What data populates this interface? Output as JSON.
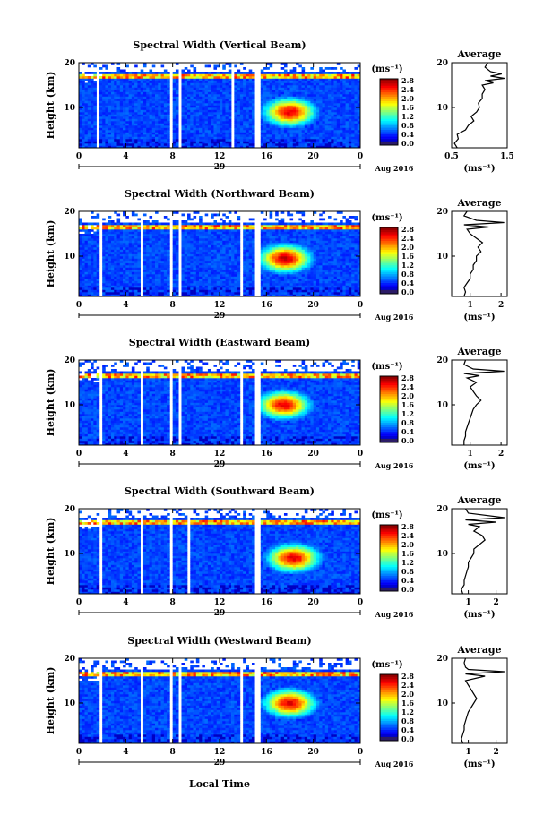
{
  "figure": {
    "bottom_xlabel": "Local Time",
    "date_label": "Aug 2016",
    "day_label": "29",
    "ylabel": "Height (km)",
    "colorbar_unit": "(ms⁻¹)",
    "average_title": "Average",
    "average_xlabel": "(ms⁻¹)"
  },
  "chart_data": [
    {
      "type": "heatmap",
      "title": "Spectral Width (Vertical Beam)",
      "x_ticks": [
        "0",
        "4",
        "8",
        "12",
        "16",
        "20",
        "0"
      ],
      "xlim": [
        0,
        24
      ],
      "y_ticks": [
        "10",
        "20"
      ],
      "ylim": [
        1,
        20
      ],
      "gaps": [
        [
          1.5,
          1.7
        ],
        [
          7.8,
          8.0
        ],
        [
          8.5,
          8.7
        ],
        [
          12.9,
          13.3
        ],
        [
          15.1,
          15.5
        ]
      ],
      "tropopause_km": 17,
      "hot_spot": {
        "x": 18,
        "y": 9,
        "value": 2.6
      },
      "colorbar": {
        "ticks": [
          "0.0",
          "0.4",
          "0.8",
          "1.2",
          "1.6",
          "2.0",
          "2.4",
          "2.8"
        ],
        "range": [
          0,
          3.0
        ]
      },
      "average": {
        "x_ticks": [
          "0.5",
          "1.5"
        ],
        "xlim": [
          0.5,
          1.5
        ],
        "y_ticks": [
          "10",
          "20"
        ],
        "profile": [
          [
            1,
            0.6
          ],
          [
            2,
            0.55
          ],
          [
            3,
            0.62
          ],
          [
            4,
            0.6
          ],
          [
            5,
            0.75
          ],
          [
            6,
            0.8
          ],
          [
            7,
            0.9
          ],
          [
            8,
            0.85
          ],
          [
            9,
            0.95
          ],
          [
            10,
            1.0
          ],
          [
            11,
            0.98
          ],
          [
            12,
            1.05
          ],
          [
            13,
            1.05
          ],
          [
            14,
            1.1
          ],
          [
            15,
            1.05
          ],
          [
            15.5,
            1.25
          ],
          [
            16,
            1.1
          ],
          [
            16.5,
            1.45
          ],
          [
            17,
            1.2
          ],
          [
            17.5,
            1.4
          ],
          [
            18,
            1.2
          ],
          [
            19,
            1.1
          ],
          [
            20,
            1.15
          ]
        ]
      }
    },
    {
      "type": "heatmap",
      "title": "Spectral Width (Northward Beam)",
      "x_ticks": [
        "0",
        "4",
        "8",
        "12",
        "16",
        "20",
        "0"
      ],
      "xlim": [
        0,
        24
      ],
      "y_ticks": [
        "10",
        "20"
      ],
      "ylim": [
        1,
        20
      ],
      "gaps": [
        [
          1.7,
          2.0
        ],
        [
          5.3,
          5.6
        ],
        [
          7.8,
          8.1
        ],
        [
          8.5,
          8.8
        ],
        [
          13.8,
          14.1
        ],
        [
          15.1,
          15.5
        ]
      ],
      "tropopause_km": 16.5,
      "hot_spot": {
        "x": 17.6,
        "y": 9.5,
        "value": 2.7
      },
      "colorbar": {
        "ticks": [
          "0.0",
          "0.4",
          "0.8",
          "1.2",
          "1.6",
          "2.0",
          "2.4",
          "2.8"
        ],
        "range": [
          0,
          3.0
        ]
      },
      "average": {
        "x_ticks": [
          "1",
          "2"
        ],
        "xlim": [
          0.4,
          2.2
        ],
        "y_ticks": [
          "10",
          "20"
        ],
        "profile": [
          [
            1,
            0.8
          ],
          [
            2,
            0.85
          ],
          [
            3,
            0.8
          ],
          [
            4,
            0.9
          ],
          [
            5,
            1.0
          ],
          [
            6,
            1.0
          ],
          [
            7,
            1.1
          ],
          [
            8,
            1.1
          ],
          [
            9,
            1.2
          ],
          [
            10,
            1.2
          ],
          [
            11,
            1.35
          ],
          [
            12,
            1.25
          ],
          [
            13,
            1.4
          ],
          [
            14,
            1.2
          ],
          [
            15,
            1.0
          ],
          [
            16,
            0.9
          ],
          [
            16.5,
            1.6
          ],
          [
            17,
            0.8
          ],
          [
            17.5,
            2.1
          ],
          [
            18,
            1.2
          ],
          [
            19,
            0.8
          ],
          [
            20,
            0.9
          ]
        ]
      }
    },
    {
      "type": "heatmap",
      "title": "Spectral Width (Eastward Beam)",
      "x_ticks": [
        "0",
        "4",
        "8",
        "12",
        "16",
        "20",
        "0"
      ],
      "xlim": [
        0,
        24
      ],
      "y_ticks": [
        "10",
        "20"
      ],
      "ylim": [
        1,
        20
      ],
      "gaps": [
        [
          1.7,
          2.0
        ],
        [
          5.3,
          5.6
        ],
        [
          7.8,
          8.1
        ],
        [
          8.5,
          8.8
        ],
        [
          13.8,
          14.1
        ],
        [
          15.1,
          15.5
        ]
      ],
      "tropopause_km": 16.5,
      "hot_spot": {
        "x": 17.5,
        "y": 10,
        "value": 2.6
      },
      "colorbar": {
        "ticks": [
          "0.0",
          "0.4",
          "0.8",
          "1.2",
          "1.6",
          "2.0",
          "2.4",
          "2.8"
        ],
        "range": [
          0,
          3.0
        ]
      },
      "average": {
        "x_ticks": [
          "1",
          "2"
        ],
        "xlim": [
          0.4,
          2.2
        ],
        "y_ticks": [
          "10",
          "20"
        ],
        "profile": [
          [
            1,
            0.8
          ],
          [
            2,
            0.8
          ],
          [
            3,
            0.85
          ],
          [
            4,
            0.85
          ],
          [
            5,
            0.9
          ],
          [
            6,
            0.95
          ],
          [
            7,
            1.0
          ],
          [
            8,
            1.05
          ],
          [
            9,
            1.1
          ],
          [
            10,
            1.2
          ],
          [
            11,
            1.35
          ],
          [
            12,
            1.2
          ],
          [
            13,
            1.1
          ],
          [
            14,
            1.0
          ],
          [
            15,
            1.2
          ],
          [
            16,
            0.9
          ],
          [
            16.5,
            1.3
          ],
          [
            17,
            0.8
          ],
          [
            17.5,
            2.1
          ],
          [
            18,
            1.1
          ],
          [
            19,
            0.8
          ],
          [
            20,
            0.85
          ]
        ]
      }
    },
    {
      "type": "heatmap",
      "title": "Spectral Width (Southward Beam)",
      "x_ticks": [
        "0",
        "4",
        "8",
        "12",
        "16",
        "20",
        "0"
      ],
      "xlim": [
        0,
        24
      ],
      "y_ticks": [
        "10",
        "20"
      ],
      "ylim": [
        1,
        20
      ],
      "gaps": [
        [
          1.7,
          2.0
        ],
        [
          5.3,
          5.6
        ],
        [
          7.8,
          8.1
        ],
        [
          9.3,
          9.5
        ],
        [
          15.1,
          15.5
        ]
      ],
      "tropopause_km": 17,
      "hot_spot": {
        "x": 18.3,
        "y": 9,
        "value": 2.6
      },
      "colorbar": {
        "ticks": [
          "0.0",
          "0.4",
          "0.8",
          "1.2",
          "1.6",
          "2.0",
          "2.4",
          "2.8"
        ],
        "range": [
          0,
          3.0
        ]
      },
      "average": {
        "x_ticks": [
          "1",
          "2"
        ],
        "xlim": [
          0.4,
          2.4
        ],
        "y_ticks": [
          "10",
          "20"
        ],
        "profile": [
          [
            1,
            0.8
          ],
          [
            2,
            0.75
          ],
          [
            3,
            0.85
          ],
          [
            4,
            0.85
          ],
          [
            5,
            0.9
          ],
          [
            6,
            0.95
          ],
          [
            7,
            1.0
          ],
          [
            8,
            1.0
          ],
          [
            9,
            1.1
          ],
          [
            10,
            1.2
          ],
          [
            11,
            1.2
          ],
          [
            12,
            1.4
          ],
          [
            13,
            1.6
          ],
          [
            14,
            1.5
          ],
          [
            15,
            1.2
          ],
          [
            16,
            1.4
          ],
          [
            16.5,
            1.0
          ],
          [
            17,
            2.0
          ],
          [
            17.5,
            0.9
          ],
          [
            18,
            2.3
          ],
          [
            19,
            1.0
          ],
          [
            20,
            0.9
          ]
        ]
      }
    },
    {
      "type": "heatmap",
      "title": "Spectral Width (Westward Beam)",
      "x_ticks": [
        "0",
        "4",
        "8",
        "12",
        "16",
        "20",
        "0"
      ],
      "xlim": [
        0,
        24
      ],
      "y_ticks": [
        "10",
        "20"
      ],
      "ylim": [
        1,
        20
      ],
      "gaps": [
        [
          1.7,
          2.0
        ],
        [
          5.3,
          5.6
        ],
        [
          7.8,
          8.1
        ],
        [
          8.5,
          8.8
        ],
        [
          13.8,
          14.1
        ],
        [
          15.1,
          15.5
        ]
      ],
      "tropopause_km": 16.5,
      "hot_spot": {
        "x": 18,
        "y": 10,
        "value": 2.6
      },
      "colorbar": {
        "ticks": [
          "0.0",
          "0.4",
          "0.8",
          "1.2",
          "1.6",
          "2.0",
          "2.4",
          "2.8"
        ],
        "range": [
          0,
          3.0
        ]
      },
      "average": {
        "x_ticks": [
          "1",
          "2"
        ],
        "xlim": [
          0.4,
          2.4
        ],
        "y_ticks": [
          "10",
          "20"
        ],
        "profile": [
          [
            1,
            0.8
          ],
          [
            2,
            0.75
          ],
          [
            3,
            0.8
          ],
          [
            4,
            0.85
          ],
          [
            5,
            0.85
          ],
          [
            6,
            0.9
          ],
          [
            7,
            0.95
          ],
          [
            8,
            1.0
          ],
          [
            9,
            1.1
          ],
          [
            10,
            1.2
          ],
          [
            11,
            1.3
          ],
          [
            12,
            1.2
          ],
          [
            13,
            1.1
          ],
          [
            14,
            1.0
          ],
          [
            15,
            0.9
          ],
          [
            16,
            1.6
          ],
          [
            16.5,
            0.9
          ],
          [
            17,
            2.3
          ],
          [
            17.5,
            1.0
          ],
          [
            18,
            0.9
          ],
          [
            19,
            0.85
          ],
          [
            20,
            0.9
          ]
        ]
      }
    }
  ]
}
